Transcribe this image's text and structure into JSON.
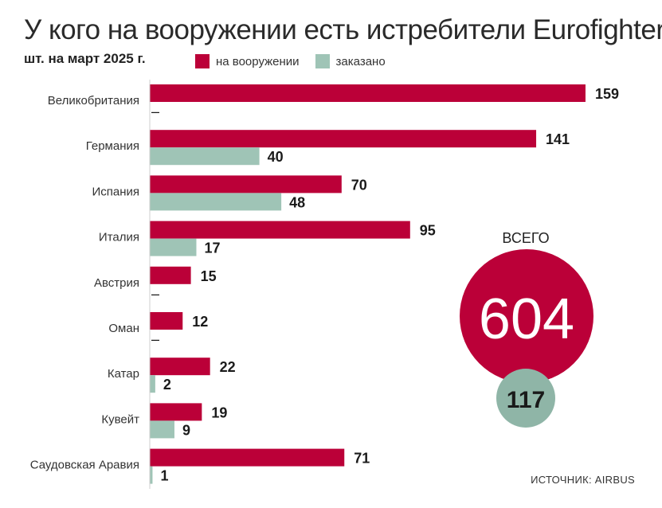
{
  "title": "У кого на вооружении есть истребители Eurofighter",
  "subtitle": "шт. на март 2025 г.",
  "legend": {
    "in_service": "на вооружении",
    "ordered": "заказано"
  },
  "colors": {
    "in_service": "#bb0038",
    "ordered": "#9fc4b6",
    "total_small": "#8fb5a7"
  },
  "source": "ИСТОЧНИК: AIRBUS",
  "total": {
    "label": "ВСЕГО",
    "in_service": "604",
    "ordered": "117"
  },
  "chart_data": {
    "type": "bar",
    "orientation": "horizontal",
    "title": "У кого на вооружении есть истребители Eurofighter",
    "subtitle": "шт. на март 2025 г.",
    "categories": [
      "Великобритания",
      "Германия",
      "Испания",
      "Италия",
      "Австрия",
      "Оман",
      "Катар",
      "Кувейт",
      "Саудовская Аравия"
    ],
    "series": [
      {
        "name": "на вооружении",
        "values": [
          159,
          141,
          70,
          95,
          15,
          12,
          22,
          19,
          71
        ],
        "labels": [
          "159",
          "141",
          "70",
          "95",
          "15",
          "12",
          "22",
          "19",
          "71"
        ]
      },
      {
        "name": "заказано",
        "values": [
          0,
          40,
          48,
          17,
          0,
          0,
          2,
          9,
          1
        ],
        "labels": [
          "–",
          "40",
          "48",
          "17",
          "–",
          "–",
          "2",
          "9",
          "1"
        ]
      }
    ]
  }
}
